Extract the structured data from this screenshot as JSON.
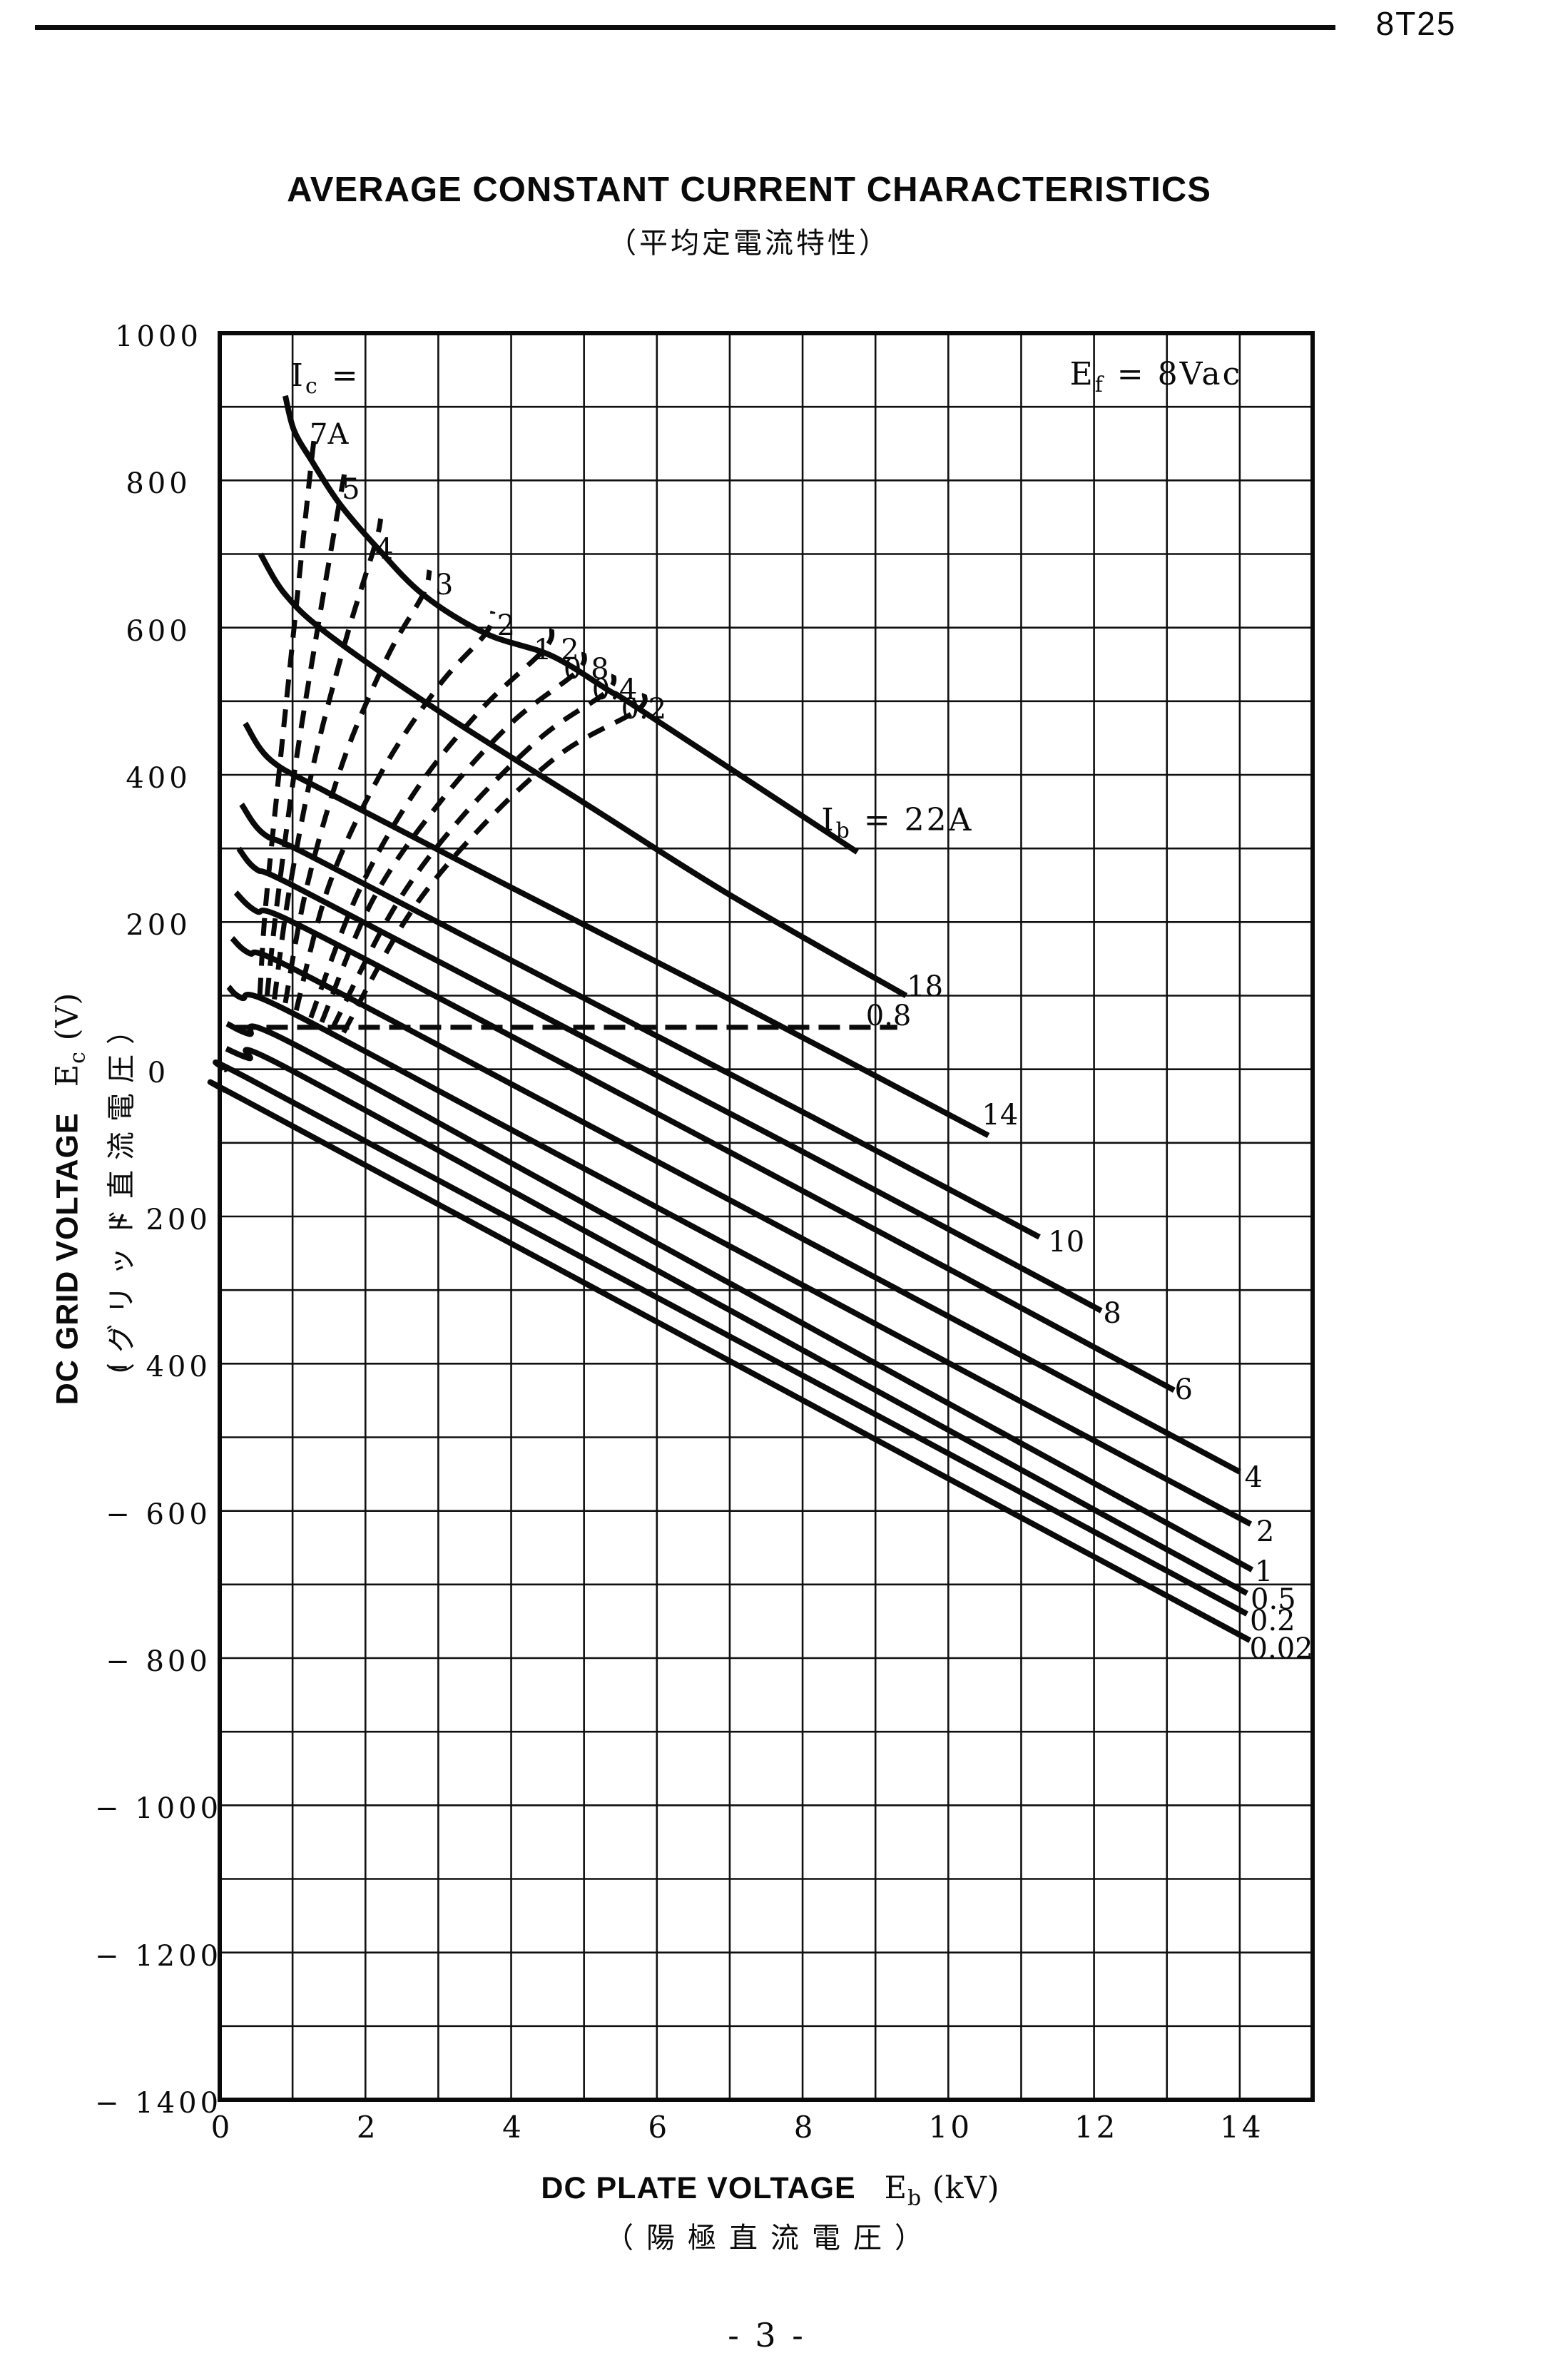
{
  "page": {
    "doc_number": "8T25",
    "page_number": "- 3 -"
  },
  "title": {
    "en": "AVERAGE CONSTANT CURRENT CHARACTERISTICS",
    "ja": "（平均定電流特性）"
  },
  "chart_data": {
    "type": "line",
    "title": "AVERAGE CONSTANT CURRENT CHARACTERISTICS",
    "title_ja": "（平均定電流特性）",
    "xlabel": "DC PLATE VOLTAGE",
    "xlabel_symbol": {
      "base": "E",
      "sub": "b",
      "rest": " (kV)"
    },
    "xlabel_ja": "（陽極直流電圧）",
    "ylabel": "DC GRID VOLTAGE",
    "ylabel_symbol": {
      "base": "E",
      "sub": "c",
      "rest": " (V)"
    },
    "ylabel_ja": "（グリッド直流電圧）",
    "xlim": [
      0,
      15
    ],
    "ylim": [
      -1400,
      1000
    ],
    "x_tick_labels": [
      0,
      2,
      4,
      6,
      8,
      10,
      12,
      14
    ],
    "y_tick_labels": [
      1000,
      800,
      600,
      400,
      200,
      0,
      -200,
      -400,
      -600,
      -800,
      -1000,
      -1200,
      -1400
    ],
    "x_grid_step_kV": 1,
    "y_grid_step_V": 100,
    "grid": true,
    "legend_position": "none",
    "condition_label": {
      "base": "E",
      "sub": "f",
      "rest": " = 8Vac",
      "at": [
        12.85,
        940
      ]
    },
    "ic_family_label": {
      "base": "I",
      "sub": "c",
      "rest": " =",
      "at": [
        1.45,
        938
      ]
    },
    "ib_family_label": {
      "base": "I",
      "sub": "b",
      "rest": " = 22A",
      "at": [
        9.3,
        334
      ]
    },
    "series_ib_solid": [
      {
        "label": null,
        "ib_amps": 22,
        "points": [
          [
            0.9,
            915
          ],
          [
            1.02,
            868
          ],
          [
            1.26,
            827
          ],
          [
            1.64,
            769
          ],
          [
            2.13,
            712
          ],
          [
            2.79,
            645
          ],
          [
            3.65,
            592
          ],
          [
            4.55,
            562
          ],
          [
            5.35,
            514
          ],
          [
            5.78,
            488
          ],
          [
            8.75,
            295
          ]
        ]
      },
      {
        "label": "18",
        "ib_amps": 18,
        "label_at": [
          9.68,
          112
        ],
        "points": [
          [
            0.56,
            700
          ],
          [
            0.9,
            645
          ],
          [
            1.5,
            590
          ],
          [
            3.0,
            487
          ],
          [
            5.0,
            362
          ],
          [
            7.0,
            237
          ],
          [
            9.42,
            100
          ]
        ]
      },
      {
        "label": "14",
        "ib_amps": 14,
        "label_at": [
          10.71,
          -62
        ],
        "points": [
          [
            0.35,
            470
          ],
          [
            0.7,
            420
          ],
          [
            1.5,
            375
          ],
          [
            4.0,
            247
          ],
          [
            7.0,
            95
          ],
          [
            10.55,
            -90
          ]
        ]
      },
      {
        "label": "10",
        "ib_amps": 10,
        "label_at": [
          11.62,
          -235
        ],
        "points": [
          [
            0.3,
            360
          ],
          [
            0.6,
            320
          ],
          [
            1.2,
            292
          ],
          [
            4.0,
            148
          ],
          [
            8.0,
            -58
          ],
          [
            11.25,
            -228
          ]
        ]
      },
      {
        "label": "8",
        "ib_amps": 8,
        "label_at": [
          12.25,
          -332
        ],
        "points": [
          [
            0.26,
            300
          ],
          [
            0.5,
            272
          ],
          [
            1.0,
            250
          ],
          [
            4.0,
            95
          ],
          [
            8.0,
            -112
          ],
          [
            12.1,
            -328
          ]
        ]
      },
      {
        "label": "6",
        "ib_amps": 6,
        "label_at": [
          13.23,
          -436
        ],
        "points": [
          [
            0.22,
            240
          ],
          [
            0.5,
            215
          ],
          [
            1.0,
            200
          ],
          [
            4.0,
            45
          ],
          [
            9.0,
            -218
          ],
          [
            13.1,
            -436
          ]
        ]
      },
      {
        "label": "4",
        "ib_amps": 4,
        "label_at": [
          14.19,
          -555
        ],
        "points": [
          [
            0.17,
            178
          ],
          [
            0.4,
            158
          ],
          [
            0.9,
            142
          ],
          [
            4.0,
            -20
          ],
          [
            9.0,
            -283
          ],
          [
            14.0,
            -547
          ]
        ]
      },
      {
        "label": "2",
        "ib_amps": 2,
        "label_at": [
          14.35,
          -628
        ],
        "points": [
          [
            0.12,
            112
          ],
          [
            0.3,
            97
          ],
          [
            0.8,
            86
          ],
          [
            4.0,
            -82
          ],
          [
            9.0,
            -346
          ],
          [
            14.15,
            -618
          ]
        ]
      },
      {
        "label": "1",
        "ib_amps": 1,
        "label_at": [
          14.33,
          -683
        ],
        "points": [
          [
            0.1,
            62
          ],
          [
            0.4,
            48
          ],
          [
            0.9,
            40
          ],
          [
            5.0,
            -182
          ],
          [
            10.0,
            -454
          ],
          [
            14.17,
            -680
          ]
        ]
      },
      {
        "label": "0.5",
        "ib_amps": 0.5,
        "label_at": [
          14.46,
          -721
        ],
        "points": [
          [
            0.09,
            28
          ],
          [
            0.4,
            15
          ],
          [
            0.8,
            8
          ],
          [
            5.0,
            -219
          ],
          [
            10.0,
            -490
          ],
          [
            14.1,
            -712
          ]
        ]
      },
      {
        "label": "0.2",
        "ib_amps": 0.2,
        "label_at": [
          14.45,
          -750
        ],
        "points": [
          [
            0.07,
            0
          ],
          [
            0.4,
            -13
          ],
          [
            5.0,
            -257
          ],
          [
            10.0,
            -522
          ],
          [
            14.1,
            -740
          ]
        ]
      },
      {
        "label": "0.02",
        "ib_amps": 0.02,
        "label_at": [
          14.57,
          -787
        ],
        "points": [
          [
            0.06,
            -28
          ],
          [
            0.3,
            -40
          ],
          [
            5.0,
            -290
          ],
          [
            10.0,
            -556
          ],
          [
            14.14,
            -776
          ]
        ]
      }
    ],
    "series_ic_dashed": [
      {
        "label": "7A",
        "ic_amps": 7,
        "label_at": [
          1.5,
          862
        ],
        "points": [
          [
            0.55,
            100
          ],
          [
            0.62,
            210
          ],
          [
            0.78,
            370
          ],
          [
            1.02,
            600
          ],
          [
            1.26,
            827
          ],
          [
            1.32,
            868
          ]
        ]
      },
      {
        "label": "5",
        "ic_amps": 5,
        "label_at": [
          1.8,
          788
        ],
        "points": [
          [
            0.65,
            100
          ],
          [
            0.78,
            220
          ],
          [
            1.05,
            420
          ],
          [
            1.38,
            620
          ],
          [
            1.64,
            769
          ],
          [
            1.71,
            808
          ]
        ]
      },
      {
        "label": "4",
        "ic_amps": 4,
        "label_at": [
          2.26,
          706
        ],
        "points": [
          [
            0.75,
            95
          ],
          [
            0.95,
            240
          ],
          [
            1.3,
            420
          ],
          [
            1.75,
            590
          ],
          [
            2.13,
            712
          ],
          [
            2.21,
            748
          ]
        ]
      },
      {
        "label": "3",
        "ic_amps": 3,
        "label_at": [
          3.08,
          658
        ],
        "points": [
          [
            0.9,
            90
          ],
          [
            1.2,
            250
          ],
          [
            1.7,
            420
          ],
          [
            2.3,
            560
          ],
          [
            2.79,
            645
          ],
          [
            2.88,
            678
          ]
        ]
      },
      {
        "label": "2",
        "ic_amps": 2,
        "label_at": [
          3.93,
          603
        ],
        "points": [
          [
            1.05,
            80
          ],
          [
            1.5,
            250
          ],
          [
            2.2,
            400
          ],
          [
            3.0,
            520
          ],
          [
            3.65,
            592
          ],
          [
            3.75,
            622
          ]
        ]
      },
      {
        "label": "1.2",
        "ic_amps": 1.2,
        "label_at": [
          4.62,
          570
        ],
        "points": [
          [
            1.25,
            70
          ],
          [
            1.9,
            240
          ],
          [
            2.7,
            380
          ],
          [
            3.6,
            490
          ],
          [
            4.45,
            570
          ],
          [
            4.56,
            598
          ]
        ]
      },
      {
        "label": "0.8",
        "ic_amps": 0.8,
        "label_at": [
          5.03,
          543
        ],
        "points": [
          [
            1.4,
            64
          ],
          [
            2.1,
            230
          ],
          [
            3.0,
            360
          ],
          [
            4.0,
            470
          ],
          [
            4.9,
            540
          ],
          [
            5.0,
            566
          ]
        ]
      },
      {
        "label": "0.4",
        "ic_amps": 0.4,
        "label_at": [
          5.42,
          515
        ],
        "points": [
          [
            1.55,
            56
          ],
          [
            2.4,
            220
          ],
          [
            3.3,
            340
          ],
          [
            4.4,
            450
          ],
          [
            5.3,
            512
          ],
          [
            5.41,
            536
          ]
        ]
      },
      {
        "label": "0.2",
        "ic_amps": 0.2,
        "label_at": [
          5.82,
          489
        ],
        "points": [
          [
            1.7,
            50
          ],
          [
            2.6,
            210
          ],
          [
            3.6,
            330
          ],
          [
            4.7,
            430
          ],
          [
            5.72,
            487
          ],
          [
            5.83,
            510
          ]
        ]
      },
      {
        "label": "0.8",
        "ic_amps": 0.8,
        "label_at": [
          9.18,
          72
        ],
        "dash": "long",
        "points": [
          [
            0.22,
            57
          ],
          [
            9.3,
            57
          ]
        ]
      }
    ]
  }
}
